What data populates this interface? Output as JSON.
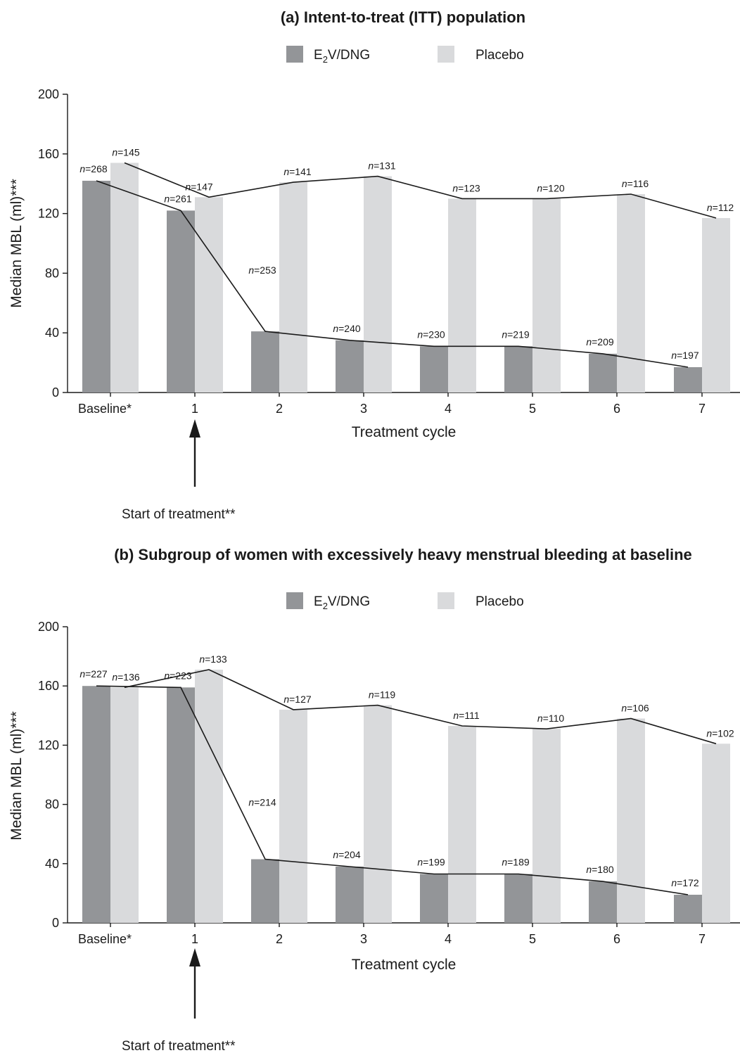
{
  "colors": {
    "e2v": "#939598",
    "placebo": "#d9dadc",
    "line": "#1a1a1a",
    "text": "#1a1a1a"
  },
  "chart_data": [
    {
      "type": "bar",
      "title": "(a) Intent-to-treat (ITT) population",
      "categories": [
        "Baseline*",
        "1",
        "2",
        "3",
        "4",
        "5",
        "6",
        "7"
      ],
      "xlabel": "Treatment cycle",
      "ylabel": "Median MBL  (ml)***",
      "ylim": [
        0,
        200
      ],
      "yticks": [
        0,
        40,
        80,
        120,
        160,
        200
      ],
      "legend": {
        "placement": "top-center",
        "e2v_prefix": "E",
        "e2v_sub": "2",
        "e2v_suffix": "V/DNG",
        "placebo": "Placebo"
      },
      "series": [
        {
          "key": "e2v",
          "values": [
            142,
            122,
            41,
            35,
            31,
            31,
            26,
            17
          ],
          "n": [
            "268",
            "261",
            "253",
            "240",
            "230",
            "219",
            "209",
            "197"
          ]
        },
        {
          "key": "placebo",
          "values": [
            154,
            131,
            141,
            145,
            130,
            130,
            133,
            117
          ],
          "n": [
            "145",
            "147",
            "141",
            "131",
            "123",
            "120",
            "116",
            "112"
          ]
        }
      ],
      "annotation": "Start of treatment**"
    },
    {
      "type": "bar",
      "title": "(b) Subgroup of women with excessively heavy menstrual bleeding at baseline",
      "categories": [
        "Baseline*",
        "1",
        "2",
        "3",
        "4",
        "5",
        "6",
        "7"
      ],
      "xlabel": "Treatment cycle",
      "ylabel": "Median MBL  (ml)***",
      "ylim": [
        0,
        200
      ],
      "yticks": [
        0,
        40,
        80,
        120,
        160,
        200
      ],
      "legend": {
        "placement": "top-center",
        "e2v_prefix": "E",
        "e2v_sub": "2",
        "e2v_suffix": "V/DNG",
        "placebo": "Placebo"
      },
      "series": [
        {
          "key": "e2v",
          "values": [
            160,
            159,
            43,
            38,
            33,
            33,
            28,
            19
          ],
          "n": [
            "227",
            "223",
            "214",
            "204",
            "199",
            "189",
            "180",
            "172"
          ]
        },
        {
          "key": "placebo",
          "values": [
            159,
            171,
            144,
            147,
            133,
            131,
            138,
            121
          ],
          "n": [
            "136",
            "133",
            "127",
            "119",
            "111",
            "110",
            "106",
            "102"
          ]
        }
      ],
      "annotation": "Start of treatment**"
    }
  ]
}
